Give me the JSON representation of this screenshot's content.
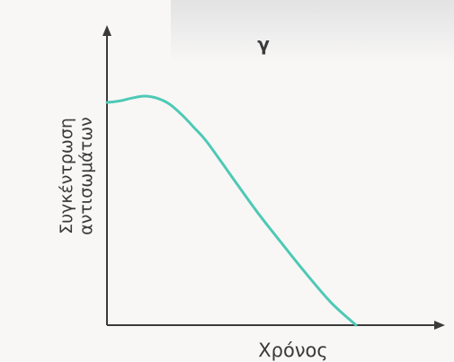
{
  "chart_data": {
    "type": "line",
    "title": "γ",
    "xlabel": "Χρόνος",
    "ylabel_lines": [
      "Συγκέντρωση",
      "αντισωμάτων"
    ],
    "x": [
      0,
      0.05,
      0.1,
      0.15,
      0.2,
      0.25,
      0.3,
      0.35,
      0.4,
      0.5,
      0.6,
      0.7,
      0.8,
      0.9,
      1.0
    ],
    "series": [
      {
        "values": [
          0.77,
          0.775,
          0.785,
          0.792,
          0.785,
          0.765,
          0.728,
          0.683,
          0.635,
          0.515,
          0.395,
          0.285,
          0.178,
          0.078,
          0.0
        ]
      }
    ],
    "xlim": [
      0,
      1.0
    ],
    "ylim": [
      0,
      1.0
    ],
    "grid": false,
    "ticks": false,
    "colors": {
      "line": "#4ec9b5",
      "axis": "#3a3a3a"
    }
  }
}
